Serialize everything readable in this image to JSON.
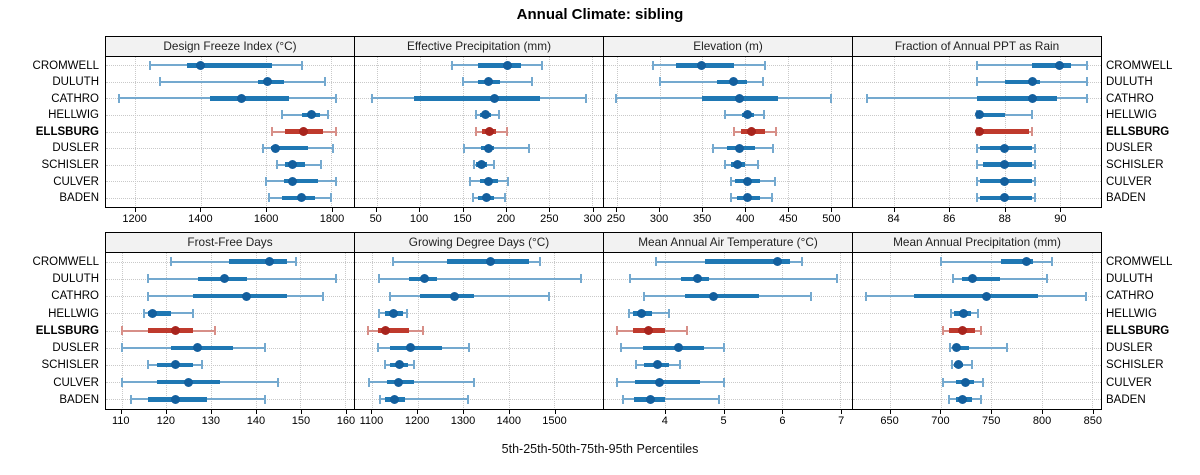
{
  "title": "Annual Climate: sibling",
  "caption": "5th-25th-50th-75th-95th Percentiles",
  "highlighted_location": "ELLSBURG",
  "colors": {
    "blue_line": "#1f78b4",
    "blue_dot": "#135f9e",
    "blue_whisker": "#74a9cf",
    "red_line": "#bf3a2d",
    "red_dot": "#a8241d",
    "red_whisker": "#d78f88",
    "header_bg": "#f2f2f2",
    "grid": "#c9c9c9",
    "border": "#000000"
  },
  "locations": [
    "CROMWELL",
    "DULUTH",
    "CATHRO",
    "HELLWIG",
    "ELLSBURG",
    "DUSLER",
    "SCHISLER",
    "CULVER",
    "BADEN"
  ],
  "chart_data": {
    "type": "dotplot-intervals",
    "title": "Annual Climate: sibling",
    "xlabel": "5th-25th-50th-75th-95th Percentiles",
    "legend_position": "none",
    "grid": true,
    "percentiles": [
      5,
      25,
      50,
      75,
      95
    ],
    "categories": [
      "CROMWELL",
      "DULUTH",
      "CATHRO",
      "HELLWIG",
      "ELLSBURG",
      "DUSLER",
      "SCHISLER",
      "CULVER",
      "BADEN"
    ],
    "highlighted_category": "ELLSBURG",
    "layout_grid": [
      2,
      4
    ],
    "panels": [
      {
        "title": "Design Freeze Index (°C)",
        "ticks": [
          1200,
          1400,
          1600,
          1800
        ],
        "xlim": [
          1110,
          1870
        ],
        "values": [
          [
            1245,
            1358,
            1400,
            1620,
            1712
          ],
          [
            1275,
            1575,
            1605,
            1655,
            1780
          ],
          [
            1150,
            1430,
            1525,
            1670,
            1815
          ],
          [
            1650,
            1712,
            1740,
            1765,
            1790
          ],
          [
            1620,
            1660,
            1715,
            1775,
            1815
          ],
          [
            1592,
            1615,
            1630,
            1730,
            1805
          ],
          [
            1635,
            1660,
            1680,
            1720,
            1770
          ],
          [
            1600,
            1655,
            1680,
            1760,
            1815
          ],
          [
            1610,
            1650,
            1710,
            1750,
            1800
          ]
        ]
      },
      {
        "title": "Effective Precipitation (mm)",
        "ticks": [
          50,
          100,
          150,
          200,
          250,
          300
        ],
        "xlim": [
          25,
          313
        ],
        "values": [
          [
            138,
            168,
            202,
            218,
            242
          ],
          [
            150,
            168,
            180,
            193,
            230
          ],
          [
            45,
            93,
            187,
            240,
            293
          ],
          [
            165,
            170,
            177,
            183,
            192
          ],
          [
            166,
            172,
            181,
            189,
            202
          ],
          [
            151,
            171,
            180,
            187,
            227
          ],
          [
            163,
            166,
            172,
            178,
            186
          ],
          [
            159,
            170,
            180,
            191,
            203
          ],
          [
            162,
            168,
            178,
            187,
            199
          ]
        ]
      },
      {
        "title": "Elevation (m)",
        "ticks": [
          250,
          300,
          350,
          400,
          450,
          500
        ],
        "xlim": [
          235,
          525
        ],
        "values": [
          [
            292,
            319,
            349,
            387,
            423
          ],
          [
            301,
            367,
            386,
            402,
            421
          ],
          [
            249,
            350,
            393,
            438,
            500
          ],
          [
            377,
            396,
            403,
            410,
            422
          ],
          [
            387,
            395,
            408,
            423,
            436
          ],
          [
            362,
            379,
            393,
            411,
            433
          ],
          [
            377,
            383,
            391,
            400,
            415
          ],
          [
            383,
            388,
            403,
            418,
            435
          ],
          [
            384,
            390,
            403,
            417,
            432
          ]
        ]
      },
      {
        "title": "Fraction of Annual PPT as Rain",
        "ticks": [
          84,
          86,
          88,
          90
        ],
        "xlim": [
          82.5,
          91.5
        ],
        "values": [
          [
            87,
            89,
            90,
            90.4,
            91
          ],
          [
            87,
            88,
            89,
            89.3,
            91
          ],
          [
            83,
            87,
            89,
            89.9,
            91
          ],
          [
            87,
            87,
            87.1,
            88,
            89
          ],
          [
            87,
            87,
            87.1,
            88.9,
            89
          ],
          [
            87,
            87.1,
            88,
            89,
            89.1
          ],
          [
            87,
            87.2,
            88,
            89,
            89.1
          ],
          [
            87,
            87.1,
            88,
            89,
            89.1
          ],
          [
            87,
            87.1,
            88,
            89,
            89.1
          ]
        ]
      },
      {
        "title": "Frost-Free Days",
        "ticks": [
          110,
          120,
          130,
          140,
          150,
          160
        ],
        "xlim": [
          106.5,
          162
        ],
        "values": [
          [
            121,
            134,
            143,
            147,
            149
          ],
          [
            116,
            127,
            133,
            138,
            158
          ],
          [
            116,
            126,
            138,
            147,
            155
          ],
          [
            115,
            116,
            117,
            121,
            126
          ],
          [
            110,
            116,
            122,
            126,
            131
          ],
          [
            110,
            121,
            127,
            135,
            142
          ],
          [
            116,
            118,
            122,
            126,
            128
          ],
          [
            110,
            118,
            125,
            132,
            145
          ],
          [
            112,
            116,
            122,
            129,
            142
          ]
        ]
      },
      {
        "title": "Growing Degree Days (°C)",
        "ticks": [
          1100,
          1200,
          1300,
          1400,
          1500
        ],
        "xlim": [
          1062,
          1608
        ],
        "values": [
          [
            1145,
            1264,
            1360,
            1445,
            1470
          ],
          [
            1115,
            1180,
            1215,
            1242,
            1560
          ],
          [
            1140,
            1205,
            1280,
            1325,
            1490
          ],
          [
            1115,
            1127,
            1146,
            1168,
            1176
          ],
          [
            1090,
            1113,
            1130,
            1180,
            1212
          ],
          [
            1113,
            1139,
            1185,
            1253,
            1312
          ],
          [
            1128,
            1140,
            1161,
            1178,
            1191
          ],
          [
            1093,
            1132,
            1157,
            1191,
            1323
          ],
          [
            1118,
            1128,
            1148,
            1172,
            1310
          ]
        ]
      },
      {
        "title": "Mean Annual Air Temperature (°C)",
        "ticks": [
          4,
          5,
          6,
          7
        ],
        "xlim": [
          2.95,
          7.2
        ],
        "values": [
          [
            3.84,
            4.68,
            5.92,
            6.13,
            6.34
          ],
          [
            3.39,
            4.27,
            4.56,
            4.75,
            6.94
          ],
          [
            3.63,
            4.33,
            4.82,
            5.6,
            6.5
          ],
          [
            3.37,
            3.45,
            3.59,
            3.77,
            4.07
          ],
          [
            3.18,
            3.45,
            3.72,
            4.0,
            4.37
          ],
          [
            3.24,
            3.61,
            4.22,
            4.66,
            5.0
          ],
          [
            3.49,
            3.64,
            3.86,
            4.06,
            4.25
          ],
          [
            3.17,
            3.48,
            3.9,
            4.59,
            5.0
          ],
          [
            3.28,
            3.47,
            3.74,
            4.0,
            4.92
          ]
        ]
      },
      {
        "title": "Mean Annual Precipitation (mm)",
        "ticks": [
          650,
          700,
          750,
          800,
          850
        ],
        "xlim": [
          613,
          859
        ],
        "values": [
          [
            700,
            760,
            785,
            792,
            810
          ],
          [
            712,
            721,
            732,
            759,
            805
          ],
          [
            626,
            674,
            745,
            797,
            844
          ],
          [
            710,
            713,
            723,
            730,
            737
          ],
          [
            702,
            708,
            722,
            734,
            740
          ],
          [
            709,
            712,
            716,
            728,
            766
          ],
          [
            711,
            713,
            718,
            722,
            731
          ],
          [
            702,
            715,
            725,
            733,
            742
          ],
          [
            708,
            715,
            722,
            731,
            740
          ]
        ]
      }
    ]
  }
}
